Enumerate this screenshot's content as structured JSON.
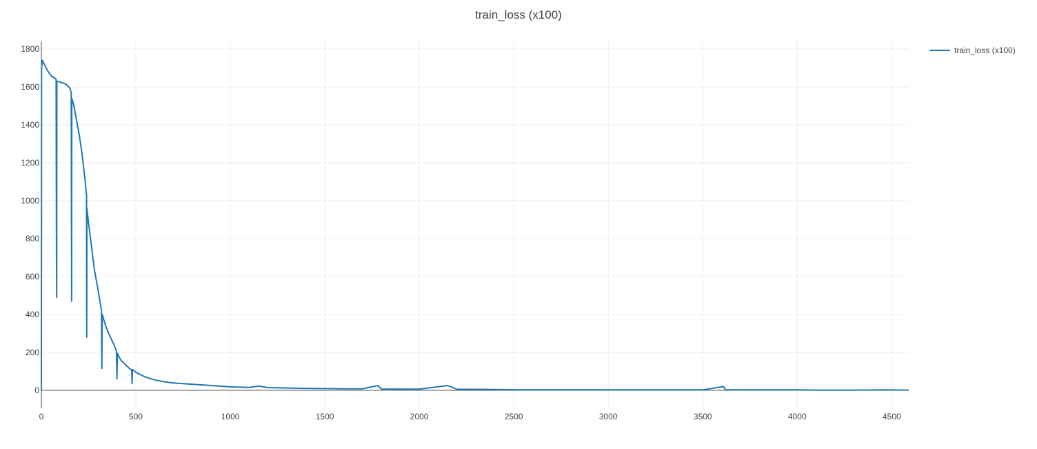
{
  "chart_data": {
    "type": "line",
    "title": "train_loss (x100)",
    "xlabel": "",
    "ylabel": "",
    "xlim": [
      0,
      4590
    ],
    "ylim": [
      -95,
      1840
    ],
    "x_ticks": [
      0,
      500,
      1000,
      1500,
      2000,
      2500,
      3000,
      3500,
      4000,
      4500
    ],
    "y_ticks": [
      0,
      200,
      400,
      600,
      800,
      1000,
      1200,
      1400,
      1600,
      1800
    ],
    "grid": true,
    "legend_position": "top-right",
    "series": [
      {
        "name": "train_loss (x100)",
        "color": "#1f77b4",
        "points": [
          [
            0,
            0
          ],
          [
            1,
            1700
          ],
          [
            5,
            1740
          ],
          [
            15,
            1720
          ],
          [
            30,
            1690
          ],
          [
            50,
            1660
          ],
          [
            78,
            1640
          ],
          [
            80,
            710
          ],
          [
            81,
            490
          ],
          [
            82,
            1630
          ],
          [
            100,
            1625
          ],
          [
            130,
            1615
          ],
          [
            150,
            1595
          ],
          [
            158,
            1570
          ],
          [
            160,
            470
          ],
          [
            161,
            1540
          ],
          [
            170,
            1510
          ],
          [
            185,
            1430
          ],
          [
            200,
            1350
          ],
          [
            215,
            1250
          ],
          [
            230,
            1120
          ],
          [
            239,
            1030
          ],
          [
            240,
            280
          ],
          [
            241,
            960
          ],
          [
            250,
            880
          ],
          [
            265,
            760
          ],
          [
            280,
            640
          ],
          [
            300,
            530
          ],
          [
            318,
            420
          ],
          [
            320,
            115
          ],
          [
            322,
            400
          ],
          [
            340,
            340
          ],
          [
            360,
            290
          ],
          [
            380,
            250
          ],
          [
            397,
            210
          ],
          [
            400,
            60
          ],
          [
            402,
            195
          ],
          [
            420,
            160
          ],
          [
            450,
            130
          ],
          [
            478,
            105
          ],
          [
            480,
            35
          ],
          [
            482,
            110
          ],
          [
            500,
            95
          ],
          [
            550,
            70
          ],
          [
            600,
            55
          ],
          [
            650,
            45
          ],
          [
            700,
            38
          ],
          [
            800,
            32
          ],
          [
            900,
            25
          ],
          [
            1000,
            18
          ],
          [
            1100,
            15
          ],
          [
            1150,
            22
          ],
          [
            1200,
            14
          ],
          [
            1300,
            12
          ],
          [
            1400,
            10
          ],
          [
            1500,
            9
          ],
          [
            1600,
            8
          ],
          [
            1700,
            8
          ],
          [
            1780,
            25
          ],
          [
            1800,
            7
          ],
          [
            2000,
            6
          ],
          [
            2150,
            25
          ],
          [
            2200,
            5
          ],
          [
            2300,
            5
          ],
          [
            2400,
            4
          ],
          [
            2500,
            3
          ],
          [
            2700,
            3
          ],
          [
            3000,
            2
          ],
          [
            3500,
            2
          ],
          [
            3610,
            20
          ],
          [
            3620,
            2
          ],
          [
            4000,
            2
          ],
          [
            4100,
            1
          ],
          [
            4300,
            1
          ],
          [
            4450,
            2
          ],
          [
            4590,
            1
          ]
        ]
      }
    ]
  }
}
